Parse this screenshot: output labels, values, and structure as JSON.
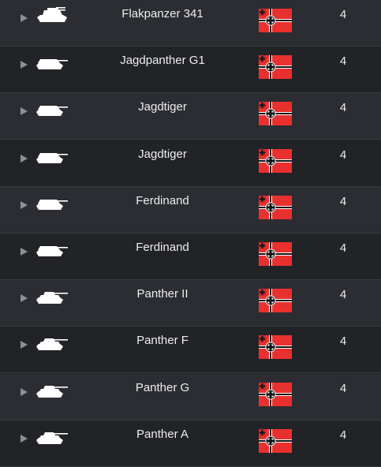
{
  "nation_icon": "german-war-ensign-flag",
  "vehicles": [
    {
      "name": "Flakpanzer 341",
      "tier": "4",
      "silhouette": "spaa"
    },
    {
      "name": "Jagdpanther G1",
      "tier": "4",
      "silhouette": "tank-destroyer"
    },
    {
      "name": "Jagdtiger",
      "tier": "4",
      "silhouette": "tank-destroyer"
    },
    {
      "name": "Jagdtiger",
      "tier": "4",
      "silhouette": "tank-destroyer"
    },
    {
      "name": "Ferdinand",
      "tier": "4",
      "silhouette": "tank-destroyer"
    },
    {
      "name": "Ferdinand",
      "tier": "4",
      "silhouette": "tank-destroyer"
    },
    {
      "name": "Panther II",
      "tier": "4",
      "silhouette": "medium-tank"
    },
    {
      "name": "Panther F",
      "tier": "4",
      "silhouette": "medium-tank"
    },
    {
      "name": "Panther G",
      "tier": "4",
      "silhouette": "medium-tank"
    },
    {
      "name": "Panther A",
      "tier": "4",
      "silhouette": "medium-tank"
    }
  ]
}
